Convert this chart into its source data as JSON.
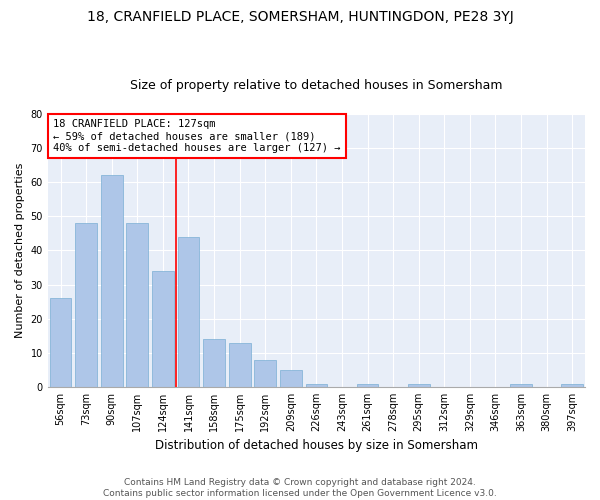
{
  "title1": "18, CRANFIELD PLACE, SOMERSHAM, HUNTINGDON, PE28 3YJ",
  "title2": "Size of property relative to detached houses in Somersham",
  "xlabel": "Distribution of detached houses by size in Somersham",
  "ylabel": "Number of detached properties",
  "categories": [
    "56sqm",
    "73sqm",
    "90sqm",
    "107sqm",
    "124sqm",
    "141sqm",
    "158sqm",
    "175sqm",
    "192sqm",
    "209sqm",
    "226sqm",
    "243sqm",
    "261sqm",
    "278sqm",
    "295sqm",
    "312sqm",
    "329sqm",
    "346sqm",
    "363sqm",
    "380sqm",
    "397sqm"
  ],
  "values": [
    26,
    48,
    62,
    48,
    34,
    44,
    14,
    13,
    8,
    5,
    1,
    0,
    1,
    0,
    1,
    0,
    0,
    0,
    1,
    0,
    1
  ],
  "bar_color": "#aec6e8",
  "bar_edge_color": "#7aafd4",
  "vline_x": 4.5,
  "vline_color": "red",
  "annotation_text": "18 CRANFIELD PLACE: 127sqm\n← 59% of detached houses are smaller (189)\n40% of semi-detached houses are larger (127) →",
  "annotation_box_color": "white",
  "annotation_box_edge_color": "red",
  "ylim": [
    0,
    80
  ],
  "yticks": [
    0,
    10,
    20,
    30,
    40,
    50,
    60,
    70,
    80
  ],
  "background_color": "#e8eef8",
  "footer_text": "Contains HM Land Registry data © Crown copyright and database right 2024.\nContains public sector information licensed under the Open Government Licence v3.0.",
  "title1_fontsize": 10,
  "title2_fontsize": 9,
  "xlabel_fontsize": 8.5,
  "ylabel_fontsize": 8,
  "tick_fontsize": 7,
  "annotation_fontsize": 7.5,
  "footer_fontsize": 6.5
}
